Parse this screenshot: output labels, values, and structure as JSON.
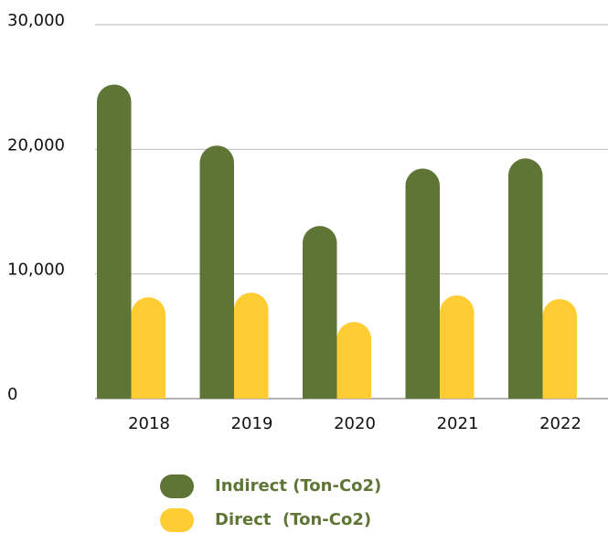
{
  "chart_data": {
    "type": "bar",
    "categories": [
      "2018",
      "2019",
      "2020",
      "2021",
      "2022"
    ],
    "series": [
      {
        "name": "Indirect (Ton-Co2)",
        "color": "#5e7535",
        "values": [
          25200,
          20300,
          13850,
          18460,
          19270
        ]
      },
      {
        "name": "Direct  (Ton-Co2)",
        "color": "#ffcd33",
        "values": [
          8130,
          8500,
          6150,
          8280,
          7990
        ]
      }
    ],
    "ylim": [
      0,
      30000
    ],
    "yticks": [
      0,
      {
        "value": 10000,
        "label": "10,000"
      },
      {
        "value": 20000,
        "label": "20,000"
      },
      {
        "value": 30000,
        "label": "30,000"
      }
    ],
    "grid": true,
    "legend": "bottom"
  }
}
